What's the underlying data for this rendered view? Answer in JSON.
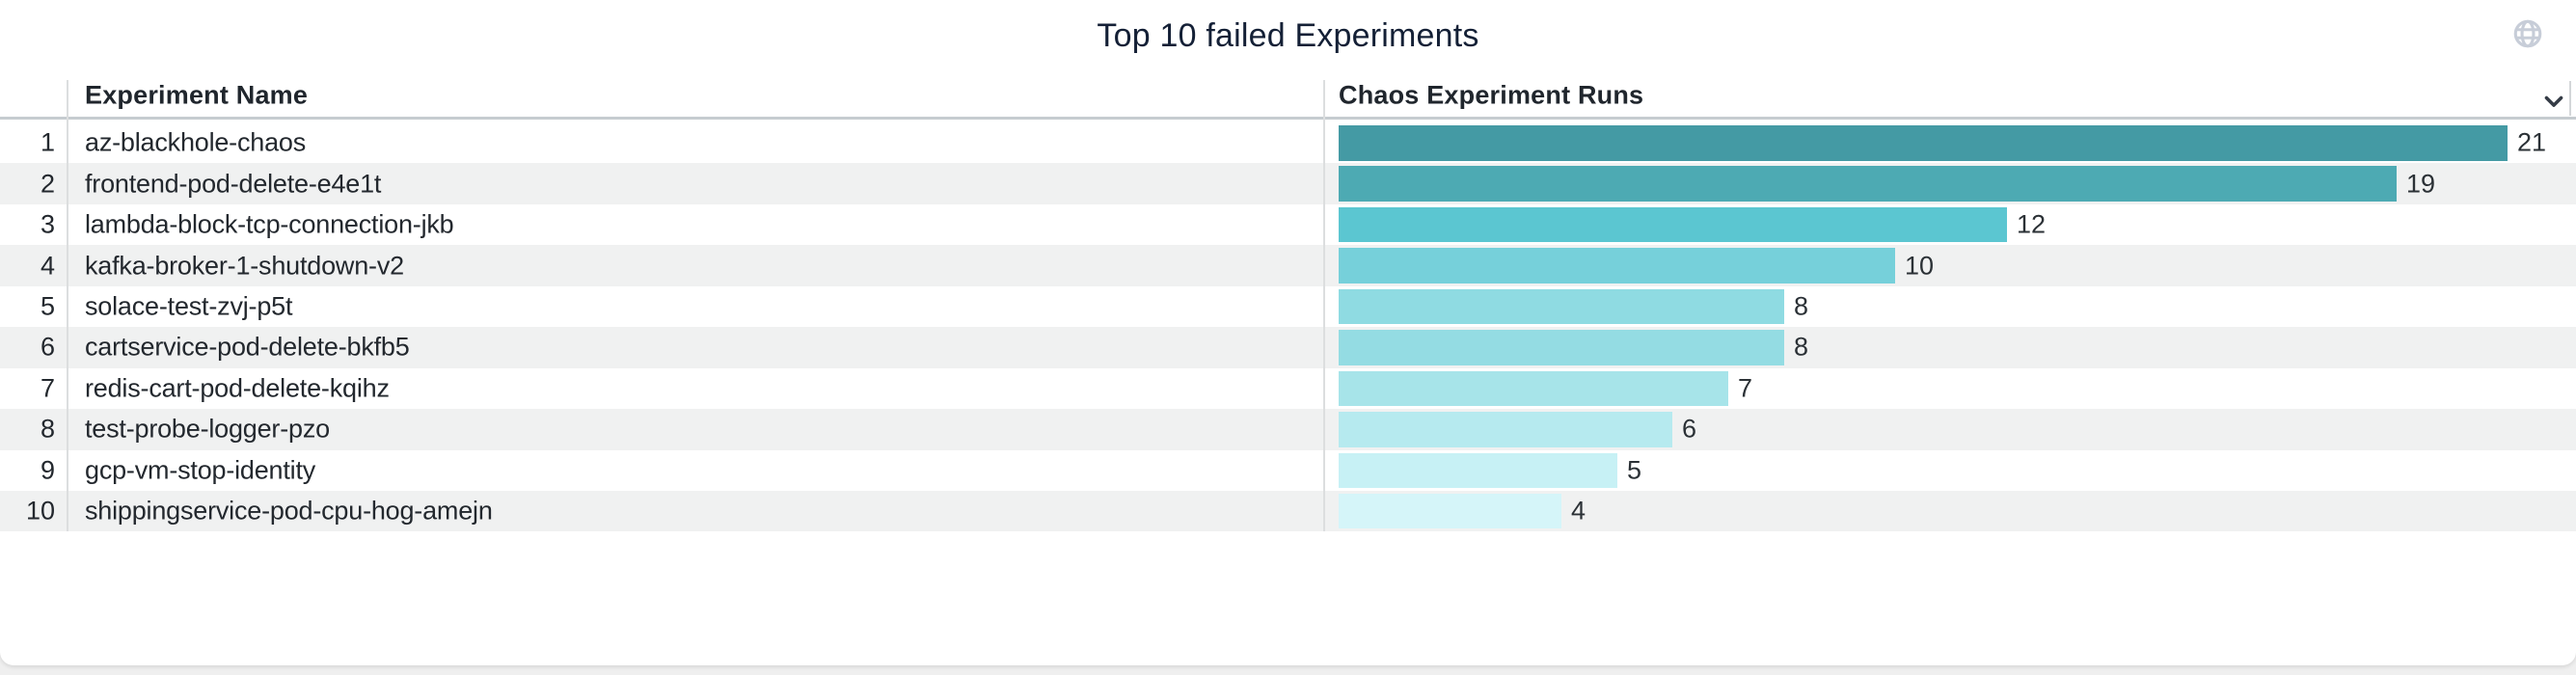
{
  "title": "Top 10 failed Experiments",
  "table": {
    "columns": [
      {
        "label": "Experiment Name"
      },
      {
        "label": "Chaos Experiment Runs"
      }
    ],
    "rows": [
      {
        "rank": "1",
        "name": "az-blackhole-chaos",
        "value": 21
      },
      {
        "rank": "2",
        "name": "frontend-pod-delete-e4e1t",
        "value": 19
      },
      {
        "rank": "3",
        "name": "lambda-block-tcp-connection-jkb",
        "value": 12
      },
      {
        "rank": "4",
        "name": "kafka-broker-1-shutdown-v2",
        "value": 10
      },
      {
        "rank": "5",
        "name": "solace-test-zvj-p5t",
        "value": 8
      },
      {
        "rank": "6",
        "name": "cartservice-pod-delete-bkfb5",
        "value": 8
      },
      {
        "rank": "7",
        "name": "redis-cart-pod-delete-kqihz",
        "value": 7
      },
      {
        "rank": "8",
        "name": "test-probe-logger-pzo",
        "value": 6
      },
      {
        "rank": "9",
        "name": "gcp-vm-stop-identity",
        "value": 5
      },
      {
        "rank": "10",
        "name": "shippingservice-pod-cpu-hog-amejn",
        "value": 4
      }
    ]
  },
  "icons": {
    "globe": "globe-icon",
    "chevron": "chevron-down-icon"
  },
  "colors": {
    "title_text": "#142036",
    "header_text": "#20262d",
    "row_text": "#23282e",
    "stripe": "#f0f1f1",
    "divider": "#dcdedf",
    "header_border": "#c6ccd0",
    "globe_icon": "#c7cdd8",
    "chevron_icon": "#353c46"
  },
  "chart_data": {
    "type": "bar",
    "orientation": "horizontal",
    "title": "Top 10 failed Experiments",
    "xlabel": "Chaos Experiment Runs",
    "ylabel": "Experiment Name",
    "categories": [
      "az-blackhole-chaos",
      "frontend-pod-delete-e4e1t",
      "lambda-block-tcp-connection-jkb",
      "kafka-broker-1-shutdown-v2",
      "solace-test-zvj-p5t",
      "cartservice-pod-delete-bkfb5",
      "redis-cart-pod-delete-kqihz",
      "test-probe-logger-pzo",
      "gcp-vm-stop-identity",
      "shippingservice-pod-cpu-hog-amejn"
    ],
    "values": [
      21,
      19,
      12,
      10,
      8,
      8,
      7,
      6,
      5,
      4
    ],
    "xlim": [
      0,
      22
    ],
    "grid": false,
    "legend": false,
    "value_labels": true,
    "bar_colors": [
      "#449aa4",
      "#4daab3",
      "#5bc6d1",
      "#76d0da",
      "#8fdbe2",
      "#94dce3",
      "#a7e4e9",
      "#b6eaef",
      "#c7f1f5",
      "#d5f5f9"
    ]
  }
}
